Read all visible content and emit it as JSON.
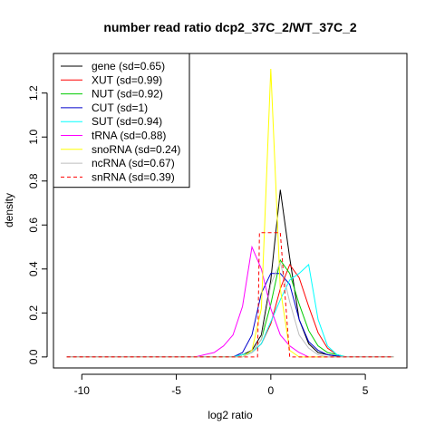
{
  "chart_data": {
    "type": "line",
    "title": "number read ratio dcp2_37C_2/WT_37C_2",
    "xlabel": "log2 ratio",
    "ylabel": "density",
    "xlim": [
      -11.5,
      7.2
    ],
    "ylim": [
      -0.05,
      1.38
    ],
    "x_ticks": [
      -10,
      -5,
      0,
      5
    ],
    "y_ticks": [
      0.0,
      0.2,
      0.4,
      0.6,
      0.8,
      1.0,
      1.2
    ],
    "x_tick_labels": [
      "-10",
      "-5",
      "0",
      "5"
    ],
    "y_tick_labels": [
      "0.0",
      "0.2",
      "0.4",
      "0.6",
      "0.8",
      "1.0",
      "1.2"
    ],
    "grid": false,
    "legend_position": "top-left",
    "series": [
      {
        "name": "gene (sd=0.65)",
        "color": "#000000",
        "dash": false,
        "x": [
          -10.8,
          -2.0,
          -1.5,
          -1.0,
          -0.5,
          0.0,
          0.5,
          1.0,
          1.5,
          2.0,
          2.5,
          3.0,
          3.5,
          4.0,
          6.5
        ],
        "y": [
          0.0,
          0.0,
          0.01,
          0.03,
          0.1,
          0.35,
          0.76,
          0.45,
          0.17,
          0.06,
          0.02,
          0.01,
          0.003,
          0.0,
          0.0
        ]
      },
      {
        "name": "XUT (sd=0.99)",
        "color": "#ff0000",
        "dash": false,
        "x": [
          -10.8,
          -2.0,
          -1.5,
          -1.0,
          -0.5,
          0.0,
          0.5,
          1.0,
          1.5,
          2.0,
          2.5,
          3.0,
          3.5,
          4.0,
          6.5
        ],
        "y": [
          0.0,
          0.0,
          0.01,
          0.02,
          0.06,
          0.15,
          0.31,
          0.42,
          0.36,
          0.23,
          0.11,
          0.04,
          0.01,
          0.0,
          0.0
        ]
      },
      {
        "name": "NUT (sd=0.92)",
        "color": "#00cc00",
        "dash": false,
        "x": [
          -10.8,
          -2.0,
          -1.5,
          -1.0,
          -0.5,
          0.0,
          0.5,
          1.0,
          1.5,
          2.0,
          2.5,
          3.0,
          3.5,
          4.0,
          6.5
        ],
        "y": [
          0.0,
          0.0,
          0.01,
          0.02,
          0.08,
          0.24,
          0.44,
          0.38,
          0.24,
          0.12,
          0.05,
          0.02,
          0.01,
          0.0,
          0.0
        ]
      },
      {
        "name": "CUT (sd=1)",
        "color": "#0000cc",
        "dash": false,
        "x": [
          -10.8,
          -2.0,
          -1.5,
          -1.0,
          -0.5,
          0.0,
          0.5,
          1.0,
          1.5,
          2.0,
          2.5,
          3.0,
          3.5,
          4.0,
          6.5
        ],
        "y": [
          0.0,
          0.0,
          0.02,
          0.1,
          0.29,
          0.38,
          0.38,
          0.33,
          0.17,
          0.07,
          0.03,
          0.01,
          0.005,
          0.0,
          0.0
        ]
      },
      {
        "name": "SUT (sd=0.94)",
        "color": "#00ffff",
        "dash": false,
        "x": [
          -10.8,
          -2.0,
          -1.5,
          -1.0,
          -0.5,
          0.0,
          0.5,
          1.0,
          1.5,
          2.0,
          2.5,
          3.0,
          3.5,
          4.0,
          6.5
        ],
        "y": [
          0.0,
          0.0,
          0.01,
          0.02,
          0.06,
          0.16,
          0.26,
          0.35,
          0.38,
          0.42,
          0.17,
          0.05,
          0.01,
          0.0,
          0.0
        ]
      },
      {
        "name": "tRNA (sd=0.88)",
        "color": "#ff00ff",
        "dash": false,
        "x": [
          -10.8,
          -4.0,
          -3.5,
          -3.0,
          -2.5,
          -2.0,
          -1.5,
          -1.0,
          -0.5,
          0.0,
          0.5,
          1.0,
          1.5,
          2.0,
          6.5
        ],
        "y": [
          0.0,
          0.0,
          0.01,
          0.02,
          0.05,
          0.1,
          0.23,
          0.5,
          0.4,
          0.22,
          0.1,
          0.05,
          0.02,
          0.0,
          0.0
        ]
      },
      {
        "name": "snoRNA (sd=0.24)",
        "color": "#ffff00",
        "dash": false,
        "x": [
          -10.8,
          -1.5,
          -1.0,
          -0.5,
          0.0,
          0.5,
          1.0,
          1.5,
          2.0,
          6.5
        ],
        "y": [
          0.0,
          0.0,
          0.03,
          0.22,
          1.31,
          0.31,
          0.03,
          0.0,
          0.0,
          0.0
        ]
      },
      {
        "name": "ncRNA (sd=0.67)",
        "color": "#bebebe",
        "dash": false,
        "x": [
          -10.8,
          -1.5,
          -1.0,
          -0.5,
          0.0,
          0.5,
          1.0,
          1.5,
          2.0,
          2.5,
          3.0,
          3.5,
          6.5
        ],
        "y": [
          0.0,
          0.0,
          0.02,
          0.08,
          0.33,
          0.43,
          0.25,
          0.1,
          0.04,
          0.01,
          0.0,
          0.0,
          0.0
        ]
      },
      {
        "name": "snRNA (sd=0.39)",
        "color": "#ff0000",
        "dash": true,
        "x": [
          -10.8,
          -1.0,
          -0.7,
          -0.6,
          0.4,
          0.5,
          1.0,
          1.1,
          6.5
        ],
        "y": [
          0.0,
          0.0,
          0.0,
          0.565,
          0.565,
          0.565,
          0.0,
          0.0,
          0.0
        ]
      }
    ]
  }
}
